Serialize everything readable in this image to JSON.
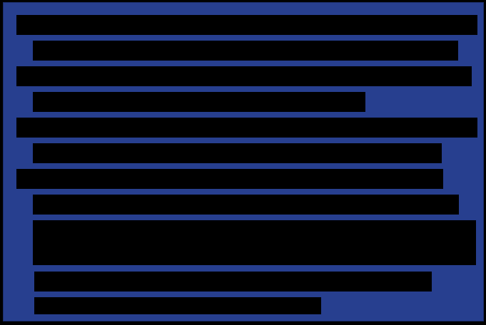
{
  "colors": {
    "panel_background": "#273f8f",
    "redaction": "#000000"
  },
  "redacted_rows": [
    {
      "indent": "top-level",
      "text": ""
    },
    {
      "indent": "nested",
      "text": ""
    },
    {
      "indent": "top-level",
      "text": ""
    },
    {
      "indent": "nested",
      "text": ""
    },
    {
      "indent": "top-level",
      "text": ""
    },
    {
      "indent": "nested",
      "text": ""
    },
    {
      "indent": "top-level",
      "text": ""
    },
    {
      "indent": "nested",
      "text": ""
    },
    {
      "indent": "nested",
      "text": ""
    },
    {
      "indent": "nested",
      "text": ""
    },
    {
      "indent": "nested",
      "text": ""
    }
  ]
}
